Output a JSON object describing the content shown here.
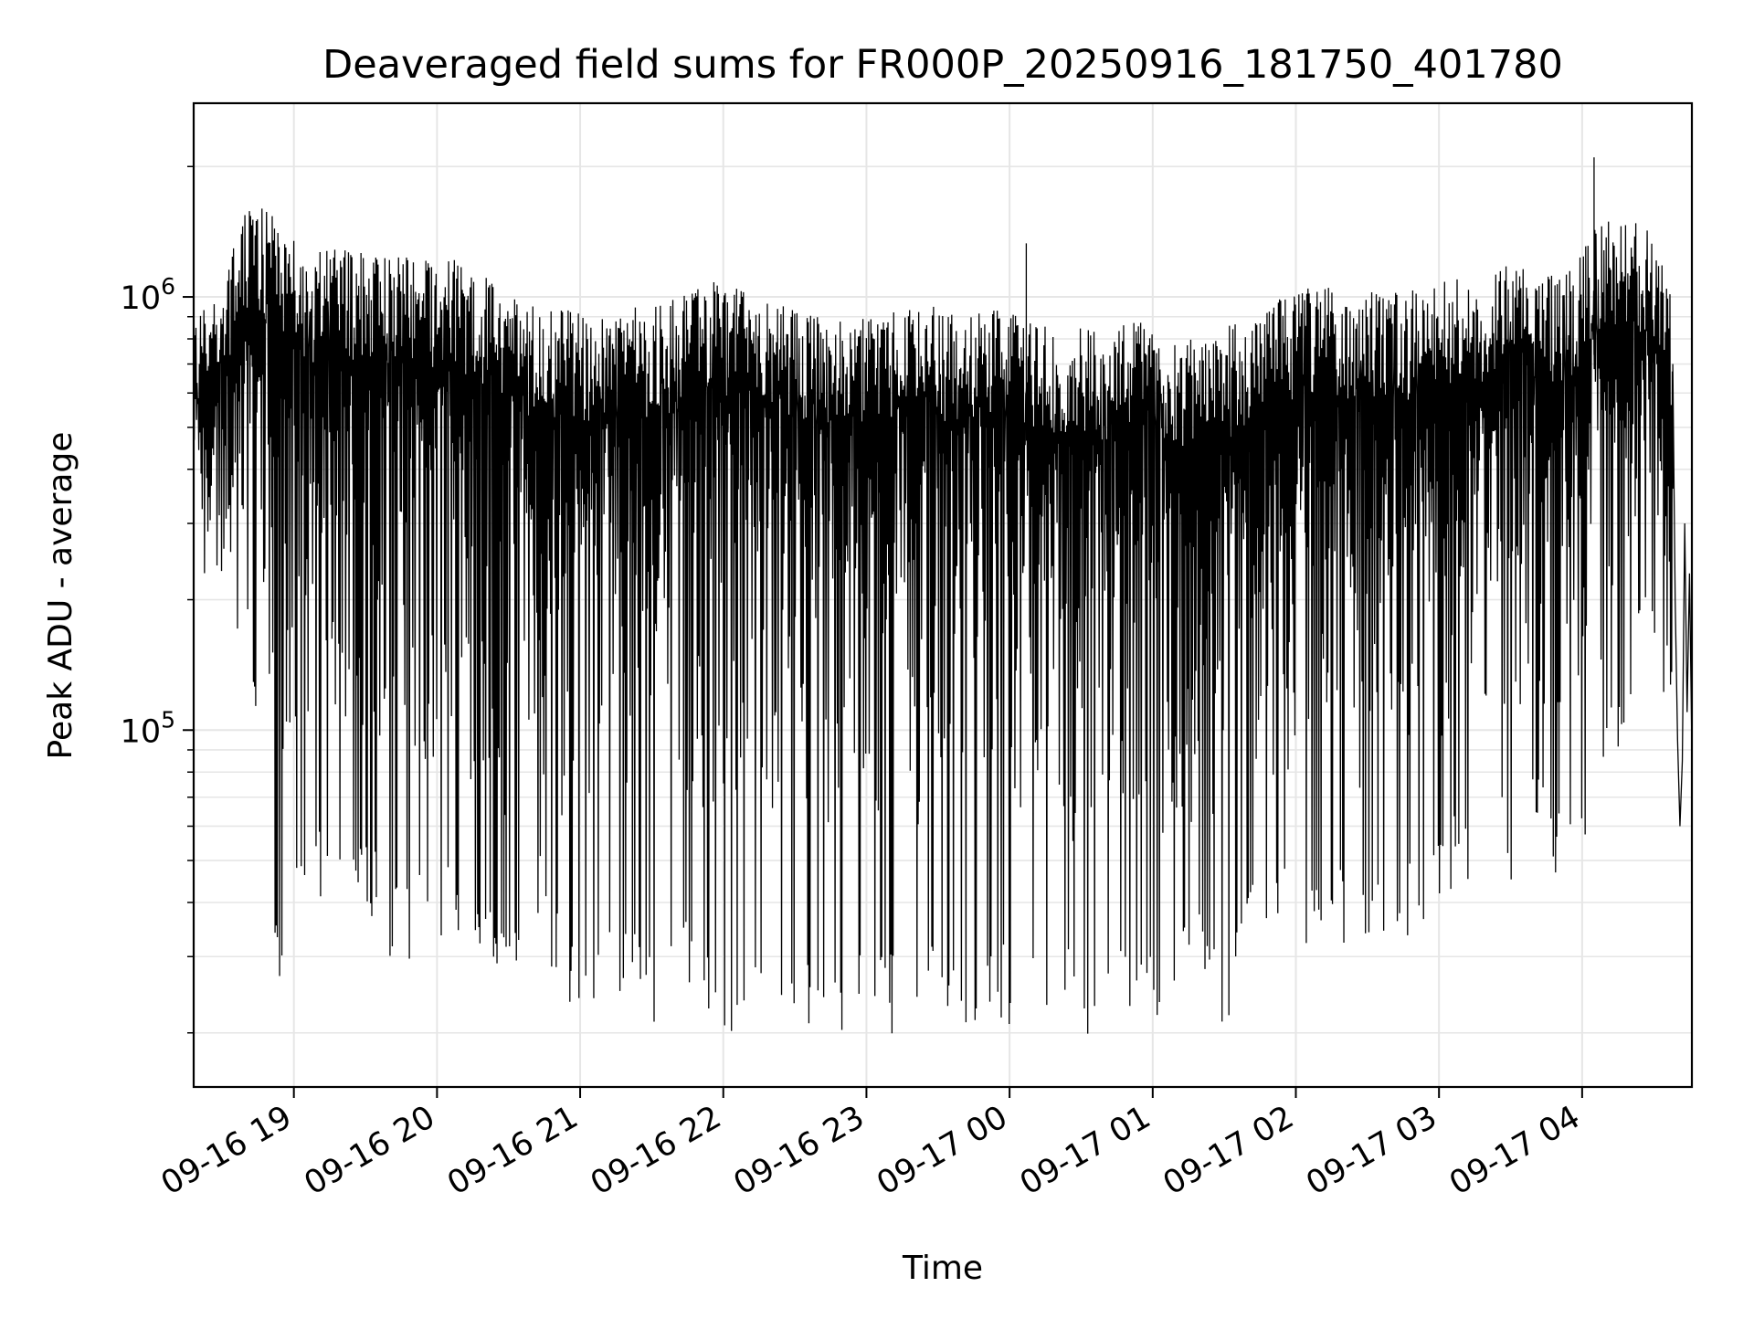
{
  "chart_data": {
    "type": "line",
    "title": "Deaveraged field sums for FR000P_20250916_181750_401780",
    "xlabel": "Time",
    "ylabel": "Peak ADU - average",
    "yscale": "log",
    "ylim": [
      15000,
      2800000
    ],
    "xlim": [
      "2025-09-16 18:18",
      "2025-09-17 04:46"
    ],
    "x_ticks": [
      "2025-09-16 19:00",
      "2025-09-16 20:00",
      "2025-09-16 21:00",
      "2025-09-16 22:00",
      "2025-09-16 23:00",
      "2025-09-17 00:00",
      "2025-09-17 01:00",
      "2025-09-17 02:00",
      "2025-09-17 03:00",
      "2025-09-17 04:00"
    ],
    "x_tick_labels": [
      "09-16 19",
      "09-16 20",
      "09-16 21",
      "09-16 22",
      "09-16 23",
      "09-17 00",
      "09-17 01",
      "09-17 02",
      "09-17 03",
      "09-17 04"
    ],
    "y_ticks": [
      100000,
      1000000
    ],
    "y_tick_labels": [
      {
        "base": "10",
        "exp": "5"
      },
      {
        "base": "10",
        "exp": "6"
      }
    ],
    "grid": true,
    "legend": "none",
    "line_color": "#000000",
    "grid_color": "#e6e6e6",
    "series": [
      {
        "x": [
          "2025-09-16 18:18",
          "2025-09-16 18:30",
          "2025-09-16 18:42",
          "2025-09-16 18:54",
          "2025-09-16 19:06",
          "2025-09-16 19:18",
          "2025-09-16 19:30",
          "2025-09-16 19:42",
          "2025-09-16 19:54",
          "2025-09-16 20:06",
          "2025-09-16 20:18",
          "2025-09-16 20:30",
          "2025-09-16 20:42",
          "2025-09-16 20:54",
          "2025-09-16 21:06",
          "2025-09-16 21:18",
          "2025-09-16 21:30",
          "2025-09-16 21:42",
          "2025-09-16 21:54",
          "2025-09-16 22:06",
          "2025-09-16 22:18",
          "2025-09-16 22:30",
          "2025-09-16 22:42",
          "2025-09-16 22:54",
          "2025-09-16 23:06",
          "2025-09-16 23:18",
          "2025-09-16 23:30",
          "2025-09-16 23:42",
          "2025-09-16 23:54",
          "2025-09-17 00:06",
          "2025-09-17 00:18",
          "2025-09-17 00:30",
          "2025-09-17 00:42",
          "2025-09-17 00:54",
          "2025-09-17 01:06",
          "2025-09-17 01:18",
          "2025-09-17 01:30",
          "2025-09-17 01:42",
          "2025-09-17 01:54",
          "2025-09-17 02:06",
          "2025-09-17 02:18",
          "2025-09-17 02:30",
          "2025-09-17 02:42",
          "2025-09-17 02:54",
          "2025-09-17 03:06",
          "2025-09-17 03:18",
          "2025-09-17 03:30",
          "2025-09-17 03:42",
          "2025-09-17 03:54",
          "2025-09-17 04:06",
          "2025-09-17 04:18",
          "2025-09-17 04:30",
          "2025-09-17 04:42"
        ],
        "upper": [
          950000,
          1100000,
          1700000,
          1500000,
          1250000,
          1300000,
          1300000,
          1250000,
          1250000,
          1250000,
          1150000,
          1000000,
          950000,
          950000,
          900000,
          950000,
          950000,
          1000000,
          1100000,
          1050000,
          1000000,
          950000,
          900000,
          900000,
          900000,
          950000,
          950000,
          900000,
          950000,
          900000,
          850000,
          850000,
          850000,
          900000,
          850000,
          800000,
          850000,
          900000,
          1000000,
          1050000,
          1050000,
          1050000,
          1050000,
          1050000,
          1100000,
          1150000,
          1200000,
          1150000,
          1150000,
          1450000,
          1600000,
          1400000,
          800000
        ],
        "lower": [
          300000,
          200000,
          130000,
          25000,
          40000,
          35000,
          40000,
          28000,
          30000,
          32000,
          25000,
          22000,
          35000,
          20000,
          22000,
          25000,
          19000,
          25000,
          20000,
          19000,
          20000,
          18000,
          19000,
          20000,
          19000,
          21000,
          20000,
          19000,
          22000,
          18000,
          22000,
          18000,
          19000,
          20000,
          19000,
          25000,
          20000,
          28000,
          30000,
          32000,
          30000,
          28000,
          35000,
          30000,
          40000,
          45000,
          45000,
          50000,
          40000,
          50000,
          100000,
          150000,
          70000
        ]
      },
      {
        "x": [
          "2025-09-17 00:07",
          "2025-09-17 04:05",
          "2025-09-17 04:46"
        ],
        "y": [
          1330000,
          2100000,
          310000
        ],
        "note_hidden": ""
      }
    ],
    "trace": {
      "x": [
        "2025-09-16 18:18",
        "2025-09-16 18:20",
        "2025-09-16 18:22",
        "2025-09-16 18:24",
        "2025-09-16 18:26",
        "2025-09-16 18:28",
        "2025-09-16 18:30",
        "2025-09-16 18:32",
        "2025-09-16 18:34",
        "2025-09-16 18:36",
        "2025-09-16 18:38",
        "2025-09-16 18:40",
        "2025-09-16 18:42",
        "2025-09-16 18:44",
        "2025-09-16 18:46",
        "2025-09-16 18:48",
        "2025-09-16 18:50",
        "2025-09-16 18:52",
        "2025-09-16 18:54",
        "2025-09-16 18:56",
        "2025-09-16 18:58"
      ],
      "y": [
        980000,
        720000,
        820000,
        450000,
        900000,
        350000,
        700000,
        250000,
        1000000,
        300000,
        1200000,
        480000,
        1700000,
        130000,
        1500000,
        250000,
        1400000,
        70000,
        1200000,
        50000,
        900000
      ]
    },
    "tail": {
      "x": [
        "2025-09-17 04:38",
        "2025-09-17 04:39",
        "2025-09-17 04:40",
        "2025-09-17 04:41",
        "2025-09-17 04:42",
        "2025-09-17 04:43",
        "2025-09-17 04:44",
        "2025-09-17 04:45",
        "2025-09-17 04:46"
      ],
      "y": [
        700000,
        200000,
        95000,
        60000,
        85000,
        300000,
        110000,
        230000,
        90000
      ]
    }
  }
}
